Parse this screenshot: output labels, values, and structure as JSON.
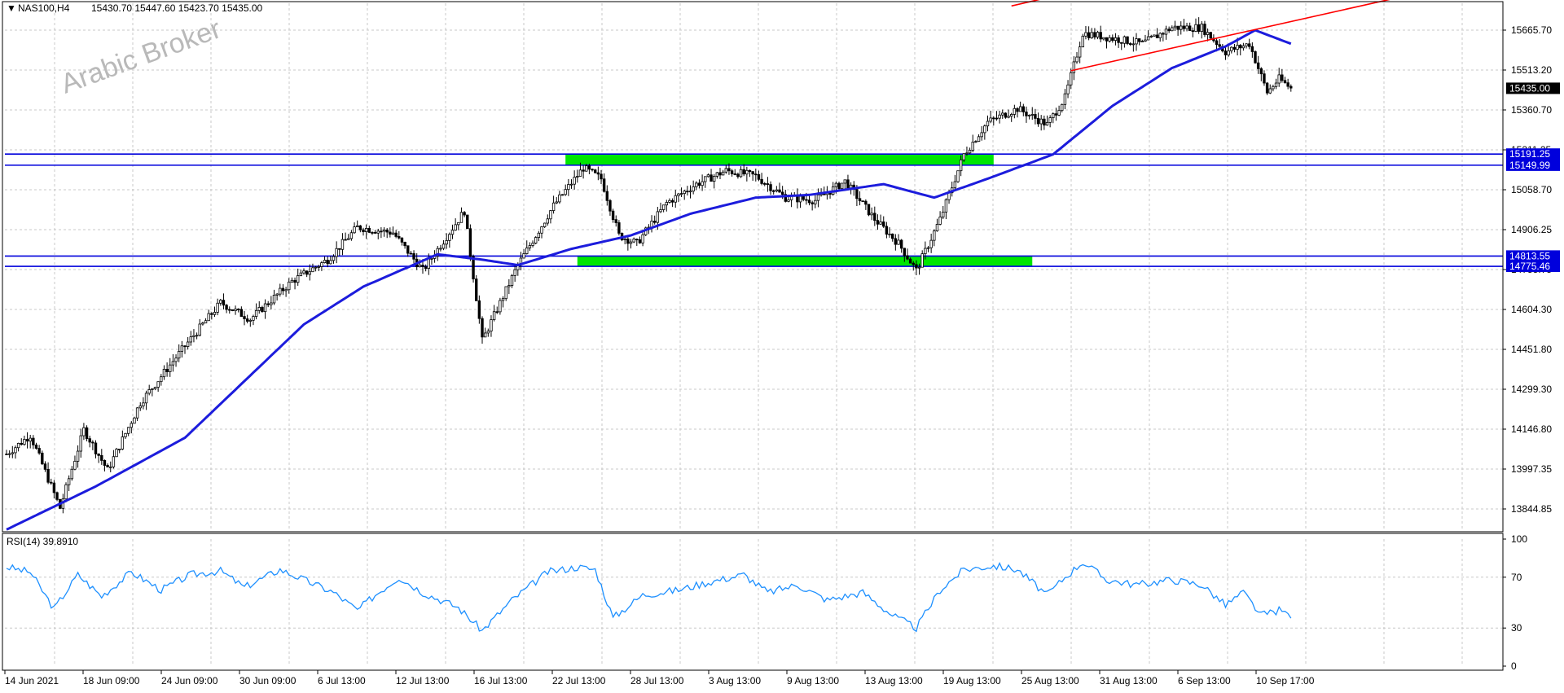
{
  "header": {
    "arrow": "▼",
    "symbol": "NAS100,H4",
    "ohlc": "15430.70 15447.60 15423.70 15435.00"
  },
  "watermark": "Arabic Broker",
  "colors": {
    "background": "#ffffff",
    "grid": "#c8c8c8",
    "candle": "#000000",
    "moving_average": "#1c1cdc",
    "channel": "#ff0000",
    "zones": "#00e600",
    "levels": "#0000dc",
    "rsi": "#1e90ff"
  },
  "chart_data": [
    {
      "type": "candlestick",
      "title": "NAS100,H4",
      "price_axis_ticks": [
        "15665.70",
        "15513.20",
        "15360.70",
        "15211.25",
        "15058.70",
        "14906.25",
        "14755.75",
        "14604.30",
        "14451.80",
        "14299.30",
        "14146.80",
        "13997.35",
        "13844.85"
      ],
      "ylim": [
        13800,
        15850
      ],
      "x_axis_labels": [
        "14 Jun 2021",
        "18 Jun 09:00",
        "24 Jun 09:00",
        "30 Jun 09:00",
        "6 Jul 13:00",
        "12 Jul 13:00",
        "16 Jul 13:00",
        "22 Jul 13:00",
        "28 Jul 13:00",
        "3 Aug 13:00",
        "9 Aug 13:00",
        "13 Aug 13:00",
        "19 Aug 13:00",
        "25 Aug 13:00",
        "31 Aug 13:00",
        "6 Sep 13:00",
        "10 Sep 17:00"
      ],
      "current_price": "15435.00",
      "price_anchors": [
        {
          "bar": 0,
          "price": 14080
        },
        {
          "bar": 8,
          "price": 14150
        },
        {
          "bar": 18,
          "price": 13880
        },
        {
          "bar": 26,
          "price": 14170
        },
        {
          "bar": 34,
          "price": 14020
        },
        {
          "bar": 45,
          "price": 14270
        },
        {
          "bar": 60,
          "price": 14480
        },
        {
          "bar": 72,
          "price": 14640
        },
        {
          "bar": 82,
          "price": 14580
        },
        {
          "bar": 96,
          "price": 14720
        },
        {
          "bar": 108,
          "price": 14800
        },
        {
          "bar": 118,
          "price": 14920
        },
        {
          "bar": 130,
          "price": 14900
        },
        {
          "bar": 140,
          "price": 14760
        },
        {
          "bar": 154,
          "price": 14980
        },
        {
          "bar": 160,
          "price": 14500
        },
        {
          "bar": 172,
          "price": 14780
        },
        {
          "bar": 184,
          "price": 15000
        },
        {
          "bar": 194,
          "price": 15140
        },
        {
          "bar": 200,
          "price": 15100
        },
        {
          "bar": 206,
          "price": 14890
        },
        {
          "bar": 212,
          "price": 14860
        },
        {
          "bar": 222,
          "price": 15010
        },
        {
          "bar": 232,
          "price": 15080
        },
        {
          "bar": 242,
          "price": 15130
        },
        {
          "bar": 252,
          "price": 15110
        },
        {
          "bar": 262,
          "price": 15030
        },
        {
          "bar": 272,
          "price": 15020
        },
        {
          "bar": 282,
          "price": 15090
        },
        {
          "bar": 292,
          "price": 14950
        },
        {
          "bar": 300,
          "price": 14860
        },
        {
          "bar": 306,
          "price": 14760
        },
        {
          "bar": 314,
          "price": 14950
        },
        {
          "bar": 322,
          "price": 15190
        },
        {
          "bar": 330,
          "price": 15310
        },
        {
          "bar": 340,
          "price": 15360
        },
        {
          "bar": 350,
          "price": 15300
        },
        {
          "bar": 356,
          "price": 15400
        },
        {
          "bar": 362,
          "price": 15640
        },
        {
          "bar": 372,
          "price": 15620
        },
        {
          "bar": 382,
          "price": 15600
        },
        {
          "bar": 392,
          "price": 15660
        },
        {
          "bar": 402,
          "price": 15660
        },
        {
          "bar": 410,
          "price": 15570
        },
        {
          "bar": 418,
          "price": 15600
        },
        {
          "bar": 424,
          "price": 15420
        },
        {
          "bar": 428,
          "price": 15470
        },
        {
          "bar": 432,
          "price": 15435
        }
      ],
      "moving_average_anchors": [
        {
          "bar": 0,
          "price": 13800
        },
        {
          "bar": 30,
          "price": 13960
        },
        {
          "bar": 60,
          "price": 14140
        },
        {
          "bar": 80,
          "price": 14350
        },
        {
          "bar": 100,
          "price": 14560
        },
        {
          "bar": 120,
          "price": 14700
        },
        {
          "bar": 145,
          "price": 14820
        },
        {
          "bar": 160,
          "price": 14800
        },
        {
          "bar": 172,
          "price": 14780
        },
        {
          "bar": 190,
          "price": 14840
        },
        {
          "bar": 210,
          "price": 14890
        },
        {
          "bar": 230,
          "price": 14970
        },
        {
          "bar": 252,
          "price": 15030
        },
        {
          "bar": 270,
          "price": 15040
        },
        {
          "bar": 295,
          "price": 15080
        },
        {
          "bar": 312,
          "price": 15030
        },
        {
          "bar": 330,
          "price": 15100
        },
        {
          "bar": 352,
          "price": 15190
        },
        {
          "bar": 372,
          "price": 15370
        },
        {
          "bar": 392,
          "price": 15510
        },
        {
          "bar": 410,
          "price": 15590
        },
        {
          "bar": 420,
          "price": 15650
        },
        {
          "bar": 432,
          "price": 15600
        }
      ],
      "horizontal_levels": [
        {
          "label": "15191.25",
          "price": 15191.25
        },
        {
          "label": "15149.99",
          "price": 15149.99
        },
        {
          "label": "14813.55",
          "price": 14813.55
        },
        {
          "label": "14775.46",
          "price": 14775.46
        }
      ],
      "zones": [
        {
          "from_bar": 188,
          "to_bar": 332,
          "price_low": 15150,
          "price_high": 15190
        },
        {
          "from_bar": 192,
          "to_bar": 345,
          "price_low": 14775,
          "price_high": 14815
        }
      ],
      "channel_lines": [
        {
          "from_bar": 338,
          "from_price": 15740,
          "to_bar": 432,
          "to_price": 15980
        },
        {
          "from_bar": 358,
          "from_price": 15500,
          "to_bar": 496,
          "to_price": 15840
        }
      ]
    },
    {
      "type": "line",
      "title": "RSI(14) 39.8910",
      "axis_ticks": [
        "100",
        "70",
        "30",
        "0"
      ],
      "ylim": [
        0,
        100
      ],
      "levels": [
        30,
        70
      ],
      "anchors": [
        {
          "bar": 0,
          "value": 78
        },
        {
          "bar": 8,
          "value": 74
        },
        {
          "bar": 16,
          "value": 45
        },
        {
          "bar": 24,
          "value": 72
        },
        {
          "bar": 32,
          "value": 55
        },
        {
          "bar": 42,
          "value": 74
        },
        {
          "bar": 52,
          "value": 60
        },
        {
          "bar": 62,
          "value": 72
        },
        {
          "bar": 72,
          "value": 75
        },
        {
          "bar": 80,
          "value": 62
        },
        {
          "bar": 92,
          "value": 76
        },
        {
          "bar": 100,
          "value": 68
        },
        {
          "bar": 110,
          "value": 58
        },
        {
          "bar": 118,
          "value": 44
        },
        {
          "bar": 124,
          "value": 56
        },
        {
          "bar": 132,
          "value": 70
        },
        {
          "bar": 140,
          "value": 58
        },
        {
          "bar": 152,
          "value": 46
        },
        {
          "bar": 160,
          "value": 28
        },
        {
          "bar": 170,
          "value": 52
        },
        {
          "bar": 182,
          "value": 74
        },
        {
          "bar": 192,
          "value": 78
        },
        {
          "bar": 198,
          "value": 76
        },
        {
          "bar": 204,
          "value": 38
        },
        {
          "bar": 214,
          "value": 56
        },
        {
          "bar": 226,
          "value": 60
        },
        {
          "bar": 236,
          "value": 66
        },
        {
          "bar": 248,
          "value": 72
        },
        {
          "bar": 256,
          "value": 58
        },
        {
          "bar": 266,
          "value": 64
        },
        {
          "bar": 276,
          "value": 52
        },
        {
          "bar": 288,
          "value": 58
        },
        {
          "bar": 298,
          "value": 40
        },
        {
          "bar": 306,
          "value": 30
        },
        {
          "bar": 314,
          "value": 60
        },
        {
          "bar": 322,
          "value": 76
        },
        {
          "bar": 332,
          "value": 79
        },
        {
          "bar": 340,
          "value": 76
        },
        {
          "bar": 350,
          "value": 56
        },
        {
          "bar": 356,
          "value": 70
        },
        {
          "bar": 362,
          "value": 82
        },
        {
          "bar": 370,
          "value": 68
        },
        {
          "bar": 380,
          "value": 64
        },
        {
          "bar": 392,
          "value": 68
        },
        {
          "bar": 402,
          "value": 64
        },
        {
          "bar": 410,
          "value": 48
        },
        {
          "bar": 416,
          "value": 58
        },
        {
          "bar": 422,
          "value": 40
        },
        {
          "bar": 428,
          "value": 44
        },
        {
          "bar": 432,
          "value": 40
        }
      ]
    }
  ]
}
